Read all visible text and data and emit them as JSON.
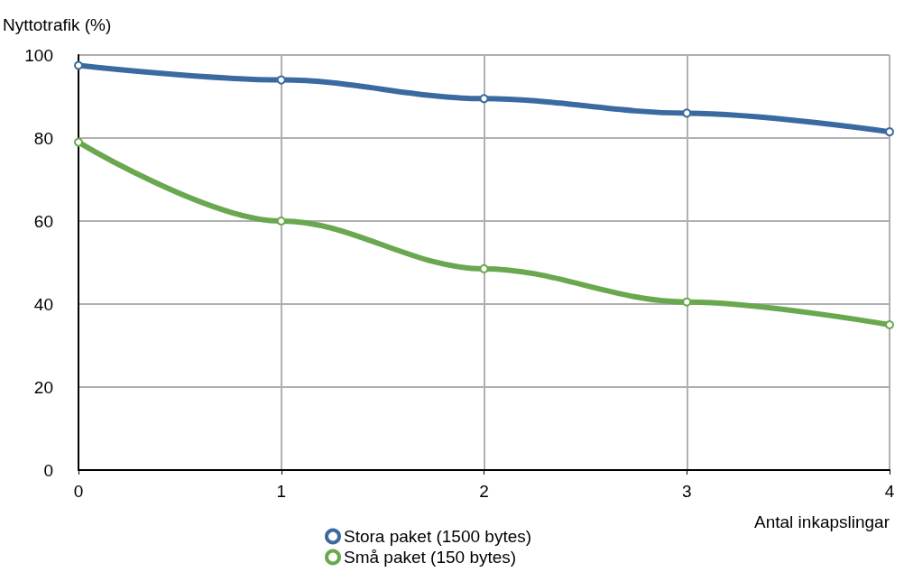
{
  "chart_data": {
    "type": "line",
    "xlabel": "Antal inkapslingar",
    "ylabel": "Nyttotrafik (%)",
    "x": [
      0,
      1,
      2,
      3,
      4
    ],
    "series": [
      {
        "name": "Stora paket (1500 bytes)",
        "color": "#3b6aa0",
        "values": [
          97.5,
          94,
          89.5,
          86,
          81.5
        ]
      },
      {
        "name": "Små paket (150 bytes)",
        "color": "#6aa84f",
        "values": [
          79,
          60,
          48.5,
          40.5,
          35
        ]
      }
    ],
    "xlim": [
      0,
      4
    ],
    "xticks": [
      0,
      1,
      2,
      3,
      4
    ],
    "ylim": [
      0,
      100
    ],
    "yticks": [
      0,
      20,
      40,
      60,
      80,
      100
    ],
    "grid": true,
    "legend": "bottom",
    "marker": "circle",
    "line_style": "solid"
  }
}
